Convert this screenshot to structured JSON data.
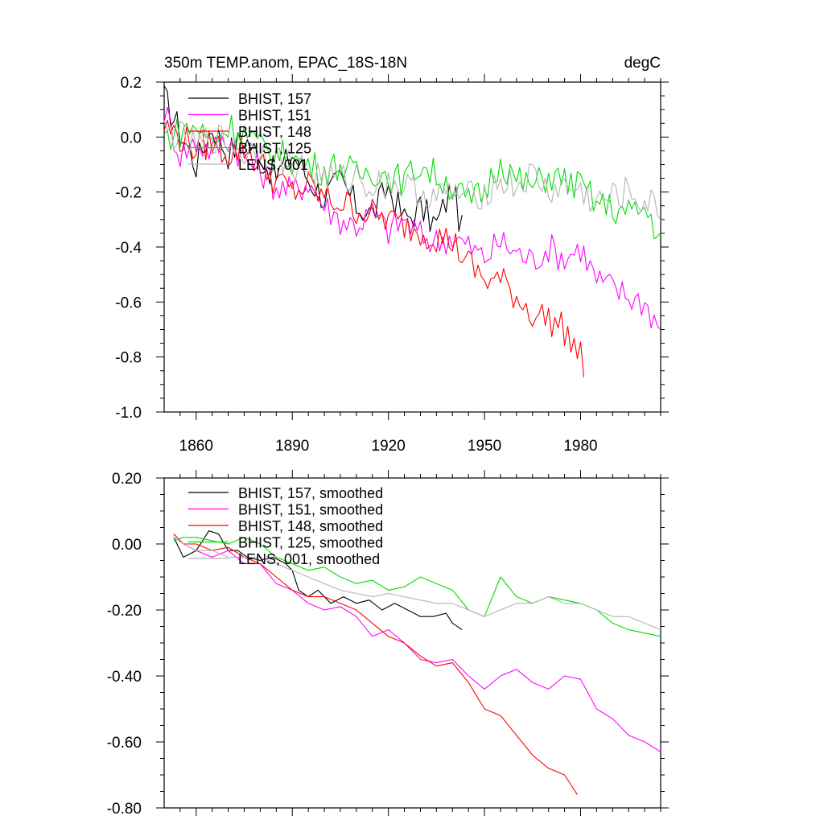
{
  "chart_data": [
    {
      "type": "line",
      "title": "350m TEMP.anom, EPAC_18S-18N",
      "units_label": "degC",
      "xlim": [
        1850,
        2005
      ],
      "ylim": [
        -1.0,
        0.2
      ],
      "x_ticks": [
        1860,
        1890,
        1920,
        1950,
        1980
      ],
      "x_tick_labels": [
        "1860",
        "1890",
        "1920",
        "1950",
        "1980"
      ],
      "y_ticks": [
        0.2,
        0.0,
        -0.2,
        -0.4,
        -0.6,
        -0.8,
        -1.0
      ],
      "y_tick_labels": [
        "0.2",
        "0.0",
        "-0.2",
        "-0.4",
        "-0.6",
        "-0.8",
        "-1.0"
      ],
      "legend_position": "top-left",
      "grid": false,
      "series": [
        {
          "name": "BHIST, 157",
          "color": "#000000",
          "start": 1850,
          "end": 1943,
          "x": [
            1850,
            1855,
            1860,
            1865,
            1870,
            1875,
            1880,
            1885,
            1890,
            1895,
            1900,
            1905,
            1910,
            1915,
            1920,
            1925,
            1930,
            1935,
            1940,
            1943
          ],
          "y": [
            0.14,
            0.02,
            -0.1,
            0.04,
            -0.06,
            0.0,
            -0.08,
            -0.14,
            -0.06,
            -0.15,
            -0.22,
            -0.16,
            -0.25,
            -0.28,
            -0.18,
            -0.3,
            -0.26,
            -0.32,
            -0.18,
            -0.34
          ]
        },
        {
          "name": "BHIST, 151",
          "color": "#ff00ff",
          "start": 1850,
          "end": 2005,
          "x": [
            1850,
            1855,
            1860,
            1865,
            1870,
            1875,
            1880,
            1885,
            1890,
            1895,
            1900,
            1905,
            1910,
            1915,
            1920,
            1925,
            1930,
            1935,
            1940,
            1945,
            1950,
            1955,
            1960,
            1965,
            1970,
            1975,
            1980,
            1985,
            1990,
            1995,
            2000,
            2005
          ],
          "y": [
            0.1,
            -0.06,
            -0.02,
            -0.05,
            0.0,
            -0.08,
            -0.12,
            -0.18,
            -0.2,
            -0.16,
            -0.25,
            -0.3,
            -0.32,
            -0.28,
            -0.34,
            -0.3,
            -0.36,
            -0.38,
            -0.36,
            -0.4,
            -0.44,
            -0.38,
            -0.42,
            -0.45,
            -0.4,
            -0.44,
            -0.4,
            -0.52,
            -0.55,
            -0.58,
            -0.6,
            -0.7
          ]
        },
        {
          "name": "BHIST, 148",
          "color": "#ff0000",
          "start": 1850,
          "end": 1981,
          "x": [
            1850,
            1855,
            1860,
            1865,
            1870,
            1875,
            1880,
            1885,
            1890,
            1895,
            1900,
            1905,
            1910,
            1915,
            1920,
            1925,
            1930,
            1935,
            1940,
            1945,
            1950,
            1955,
            1960,
            1965,
            1970,
            1975,
            1980,
            1981
          ],
          "y": [
            0.04,
            0.0,
            -0.04,
            -0.02,
            -0.06,
            -0.04,
            -0.1,
            -0.16,
            -0.2,
            -0.18,
            -0.22,
            -0.24,
            -0.26,
            -0.28,
            -0.3,
            -0.32,
            -0.34,
            -0.36,
            -0.38,
            -0.46,
            -0.52,
            -0.52,
            -0.58,
            -0.64,
            -0.66,
            -0.7,
            -0.8,
            -0.84
          ]
        },
        {
          "name": "BHIST, 125",
          "color": "#00dd00",
          "start": 1850,
          "end": 2005,
          "x": [
            1850,
            1855,
            1860,
            1865,
            1870,
            1875,
            1880,
            1885,
            1890,
            1895,
            1900,
            1905,
            1910,
            1915,
            1920,
            1925,
            1930,
            1935,
            1940,
            1945,
            1950,
            1955,
            1960,
            1965,
            1970,
            1975,
            1980,
            1985,
            1990,
            1995,
            2000,
            2005
          ],
          "y": [
            0.0,
            0.02,
            0.04,
            -0.02,
            0.04,
            0.02,
            -0.04,
            -0.06,
            -0.08,
            -0.1,
            -0.12,
            -0.1,
            -0.14,
            -0.12,
            -0.14,
            -0.16,
            -0.1,
            -0.14,
            -0.18,
            -0.24,
            -0.2,
            -0.08,
            -0.16,
            -0.18,
            -0.14,
            -0.16,
            -0.18,
            -0.24,
            -0.26,
            -0.28,
            -0.26,
            -0.36
          ]
        },
        {
          "name": "LENS, 001",
          "color": "#b4b4b4",
          "start": 1850,
          "end": 2005,
          "x": [
            1850,
            1855,
            1860,
            1865,
            1870,
            1875,
            1880,
            1885,
            1890,
            1895,
            1900,
            1905,
            1910,
            1915,
            1920,
            1925,
            1930,
            1935,
            1940,
            1945,
            1950,
            1955,
            1960,
            1965,
            1970,
            1975,
            1980,
            1985,
            1990,
            1995,
            2000,
            2005
          ],
          "y": [
            0.02,
            0.0,
            -0.04,
            0.0,
            -0.02,
            -0.06,
            -0.04,
            -0.08,
            -0.1,
            -0.12,
            -0.14,
            -0.16,
            -0.14,
            -0.18,
            -0.16,
            -0.18,
            -0.2,
            -0.22,
            -0.2,
            -0.22,
            -0.2,
            -0.16,
            -0.18,
            -0.14,
            -0.2,
            -0.18,
            -0.2,
            -0.24,
            -0.22,
            -0.2,
            -0.24,
            -0.26
          ]
        }
      ]
    },
    {
      "type": "line",
      "xlim": [
        1850,
        2005
      ],
      "ylim": [
        -0.8,
        0.2
      ],
      "x_ticks": [
        1860,
        1890,
        1920,
        1950,
        1980
      ],
      "y_ticks": [
        0.2,
        0.0,
        -0.2,
        -0.4,
        -0.6,
        -0.8
      ],
      "y_tick_labels": [
        "0.20",
        "0.00",
        "-0.20",
        "-0.40",
        "-0.60",
        "-0.80"
      ],
      "legend_position": "top-left",
      "grid": false,
      "series": [
        {
          "name": "BHIST, 157, smoothed",
          "color": "#000000",
          "x": [
            1853,
            1856,
            1860,
            1864,
            1867,
            1870,
            1873,
            1876,
            1880,
            1884,
            1888,
            1890,
            1892,
            1895,
            1898,
            1902,
            1906,
            1910,
            1914,
            1918,
            1922,
            1926,
            1930,
            1934,
            1938,
            1940,
            1943
          ],
          "y": [
            0.02,
            -0.04,
            -0.02,
            0.04,
            0.03,
            -0.02,
            -0.02,
            -0.04,
            -0.05,
            -0.04,
            -0.06,
            -0.08,
            -0.14,
            -0.16,
            -0.14,
            -0.18,
            -0.16,
            -0.18,
            -0.17,
            -0.2,
            -0.18,
            -0.2,
            -0.22,
            -0.22,
            -0.21,
            -0.24,
            -0.26
          ]
        },
        {
          "name": "BHIST, 151, smoothed",
          "color": "#ff00ff",
          "x": [
            1853,
            1856,
            1860,
            1865,
            1870,
            1875,
            1880,
            1885,
            1890,
            1895,
            1900,
            1905,
            1910,
            1915,
            1920,
            1925,
            1930,
            1935,
            1940,
            1945,
            1950,
            1955,
            1960,
            1965,
            1970,
            1975,
            1980,
            1985,
            1990,
            1995,
            2000,
            2005
          ],
          "y": [
            0.03,
            0.0,
            -0.02,
            -0.04,
            -0.02,
            -0.06,
            -0.06,
            -0.12,
            -0.14,
            -0.18,
            -0.2,
            -0.19,
            -0.22,
            -0.28,
            -0.26,
            -0.3,
            -0.35,
            -0.36,
            -0.35,
            -0.4,
            -0.44,
            -0.4,
            -0.38,
            -0.42,
            -0.44,
            -0.4,
            -0.41,
            -0.5,
            -0.53,
            -0.58,
            -0.6,
            -0.63
          ]
        },
        {
          "name": "BHIST, 148, smoothed",
          "color": "#ff0000",
          "x": [
            1853,
            1856,
            1860,
            1865,
            1870,
            1875,
            1880,
            1885,
            1890,
            1895,
            1900,
            1905,
            1910,
            1915,
            1920,
            1925,
            1930,
            1935,
            1940,
            1945,
            1950,
            1955,
            1960,
            1965,
            1970,
            1975,
            1979
          ],
          "y": [
            0.03,
            0.0,
            0.0,
            -0.02,
            -0.01,
            -0.04,
            -0.06,
            -0.1,
            -0.14,
            -0.16,
            -0.16,
            -0.18,
            -0.2,
            -0.24,
            -0.28,
            -0.3,
            -0.34,
            -0.37,
            -0.36,
            -0.42,
            -0.5,
            -0.52,
            -0.58,
            -0.64,
            -0.68,
            -0.7,
            -0.76
          ]
        },
        {
          "name": "BHIST, 125, smoothed",
          "color": "#00dd00",
          "x": [
            1853,
            1856,
            1860,
            1865,
            1870,
            1875,
            1880,
            1885,
            1890,
            1895,
            1900,
            1905,
            1910,
            1915,
            1920,
            1925,
            1930,
            1935,
            1940,
            1945,
            1950,
            1955,
            1960,
            1965,
            1970,
            1975,
            1980,
            1985,
            1990,
            1995,
            2000,
            2005
          ],
          "y": [
            0.01,
            0.02,
            0.02,
            0.01,
            0.0,
            0.02,
            0.0,
            -0.04,
            -0.06,
            -0.08,
            -0.07,
            -0.1,
            -0.12,
            -0.11,
            -0.14,
            -0.13,
            -0.1,
            -0.12,
            -0.14,
            -0.2,
            -0.22,
            -0.1,
            -0.16,
            -0.18,
            -0.16,
            -0.17,
            -0.18,
            -0.2,
            -0.24,
            -0.26,
            -0.27,
            -0.28
          ]
        },
        {
          "name": "LENS, 001, smoothed",
          "color": "#b4b4b4",
          "x": [
            1853,
            1856,
            1860,
            1865,
            1870,
            1875,
            1880,
            1885,
            1890,
            1895,
            1900,
            1905,
            1910,
            1915,
            1920,
            1925,
            1930,
            1935,
            1940,
            1945,
            1950,
            1955,
            1960,
            1965,
            1970,
            1975,
            1980,
            1985,
            1990,
            1995,
            2000,
            2005
          ],
          "y": [
            0.02,
            0.0,
            -0.02,
            -0.02,
            -0.04,
            -0.04,
            -0.04,
            -0.06,
            -0.08,
            -0.1,
            -0.12,
            -0.14,
            -0.15,
            -0.16,
            -0.15,
            -0.16,
            -0.17,
            -0.18,
            -0.18,
            -0.2,
            -0.22,
            -0.2,
            -0.18,
            -0.18,
            -0.16,
            -0.18,
            -0.18,
            -0.2,
            -0.22,
            -0.22,
            -0.24,
            -0.26
          ]
        }
      ]
    }
  ]
}
